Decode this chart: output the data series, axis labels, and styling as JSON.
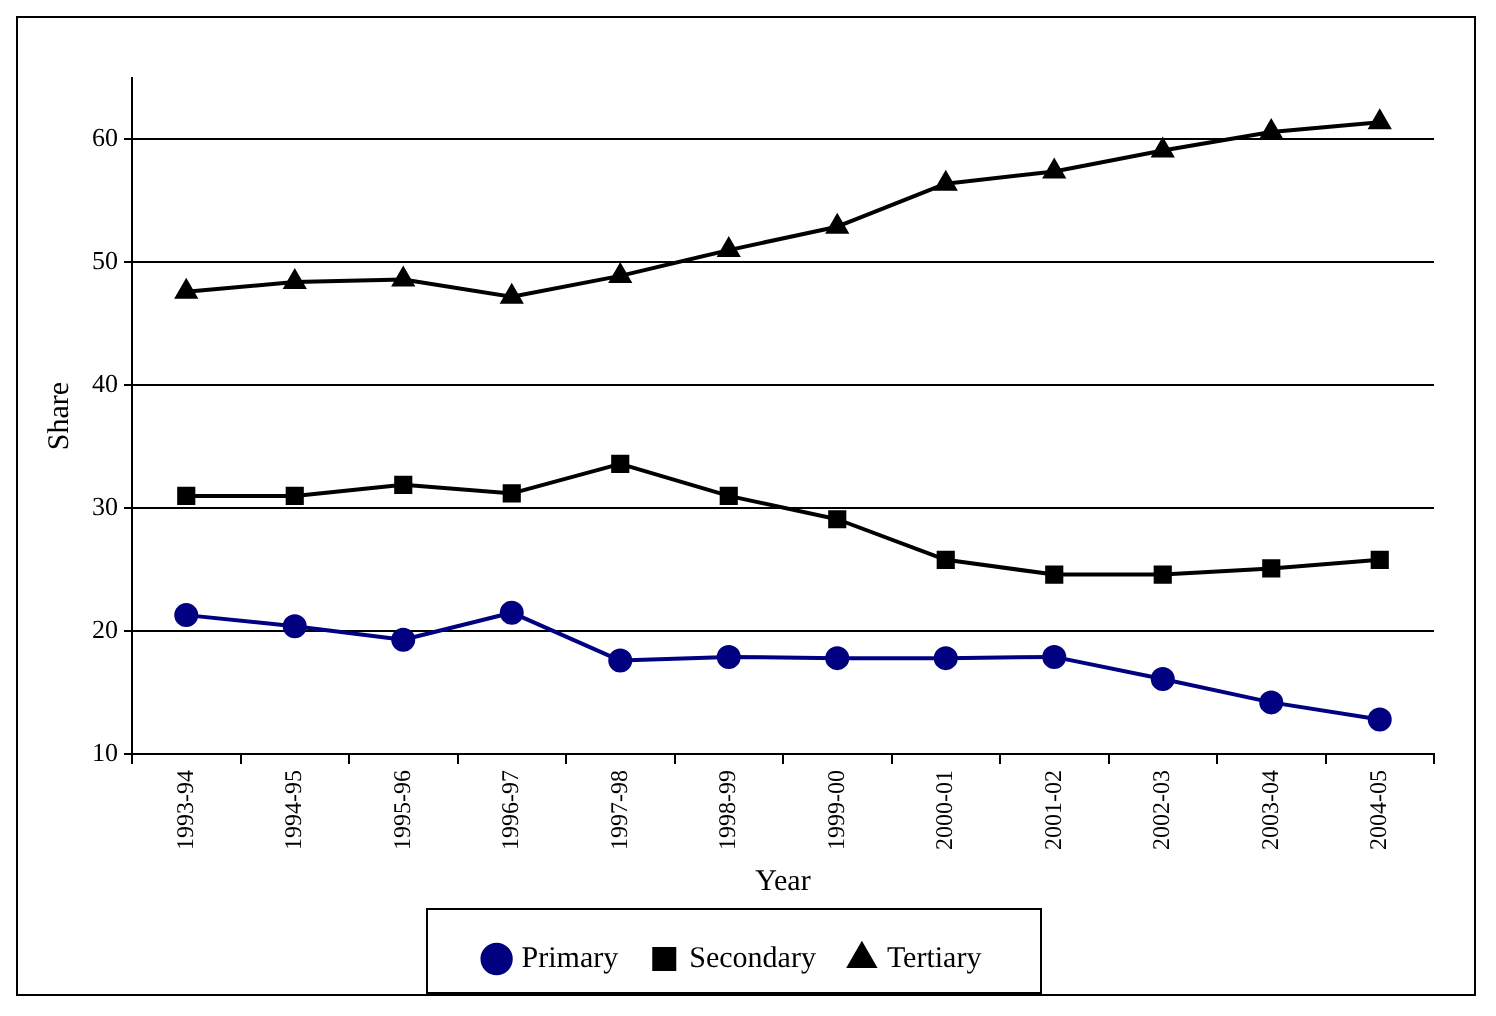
{
  "chart_data": {
    "type": "line",
    "xlabel": "Year",
    "ylabel": "Share",
    "categories": [
      "1993-94",
      "1994-95",
      "1995-96",
      "1996-97",
      "1997-98",
      "1998-99",
      "1999-00",
      "2000-01",
      "2001-02",
      "2002-03",
      "2003-04",
      "2004-05"
    ],
    "series": [
      {
        "name": "Primary",
        "color": "#000080",
        "marker": "circle",
        "values": [
          21.3,
          20.4,
          19.3,
          21.5,
          17.6,
          17.9,
          17.8,
          17.8,
          17.9,
          16.1,
          14.2,
          12.8
        ]
      },
      {
        "name": "Secondary",
        "color": "#000000",
        "marker": "square",
        "values": [
          31.0,
          31.0,
          31.9,
          31.2,
          33.6,
          31.0,
          29.1,
          25.8,
          24.6,
          24.6,
          25.1,
          25.8
        ]
      },
      {
        "name": "Tertiary",
        "color": "#000000",
        "marker": "triangle",
        "values": [
          47.6,
          48.4,
          48.6,
          47.2,
          48.9,
          51.0,
          52.9,
          56.4,
          57.4,
          59.1,
          60.6,
          61.4
        ]
      }
    ],
    "ylim": [
      10,
      65
    ],
    "yticks": [
      10,
      20,
      30,
      40,
      50,
      60
    ],
    "grid": "y",
    "legend": "bottom"
  }
}
